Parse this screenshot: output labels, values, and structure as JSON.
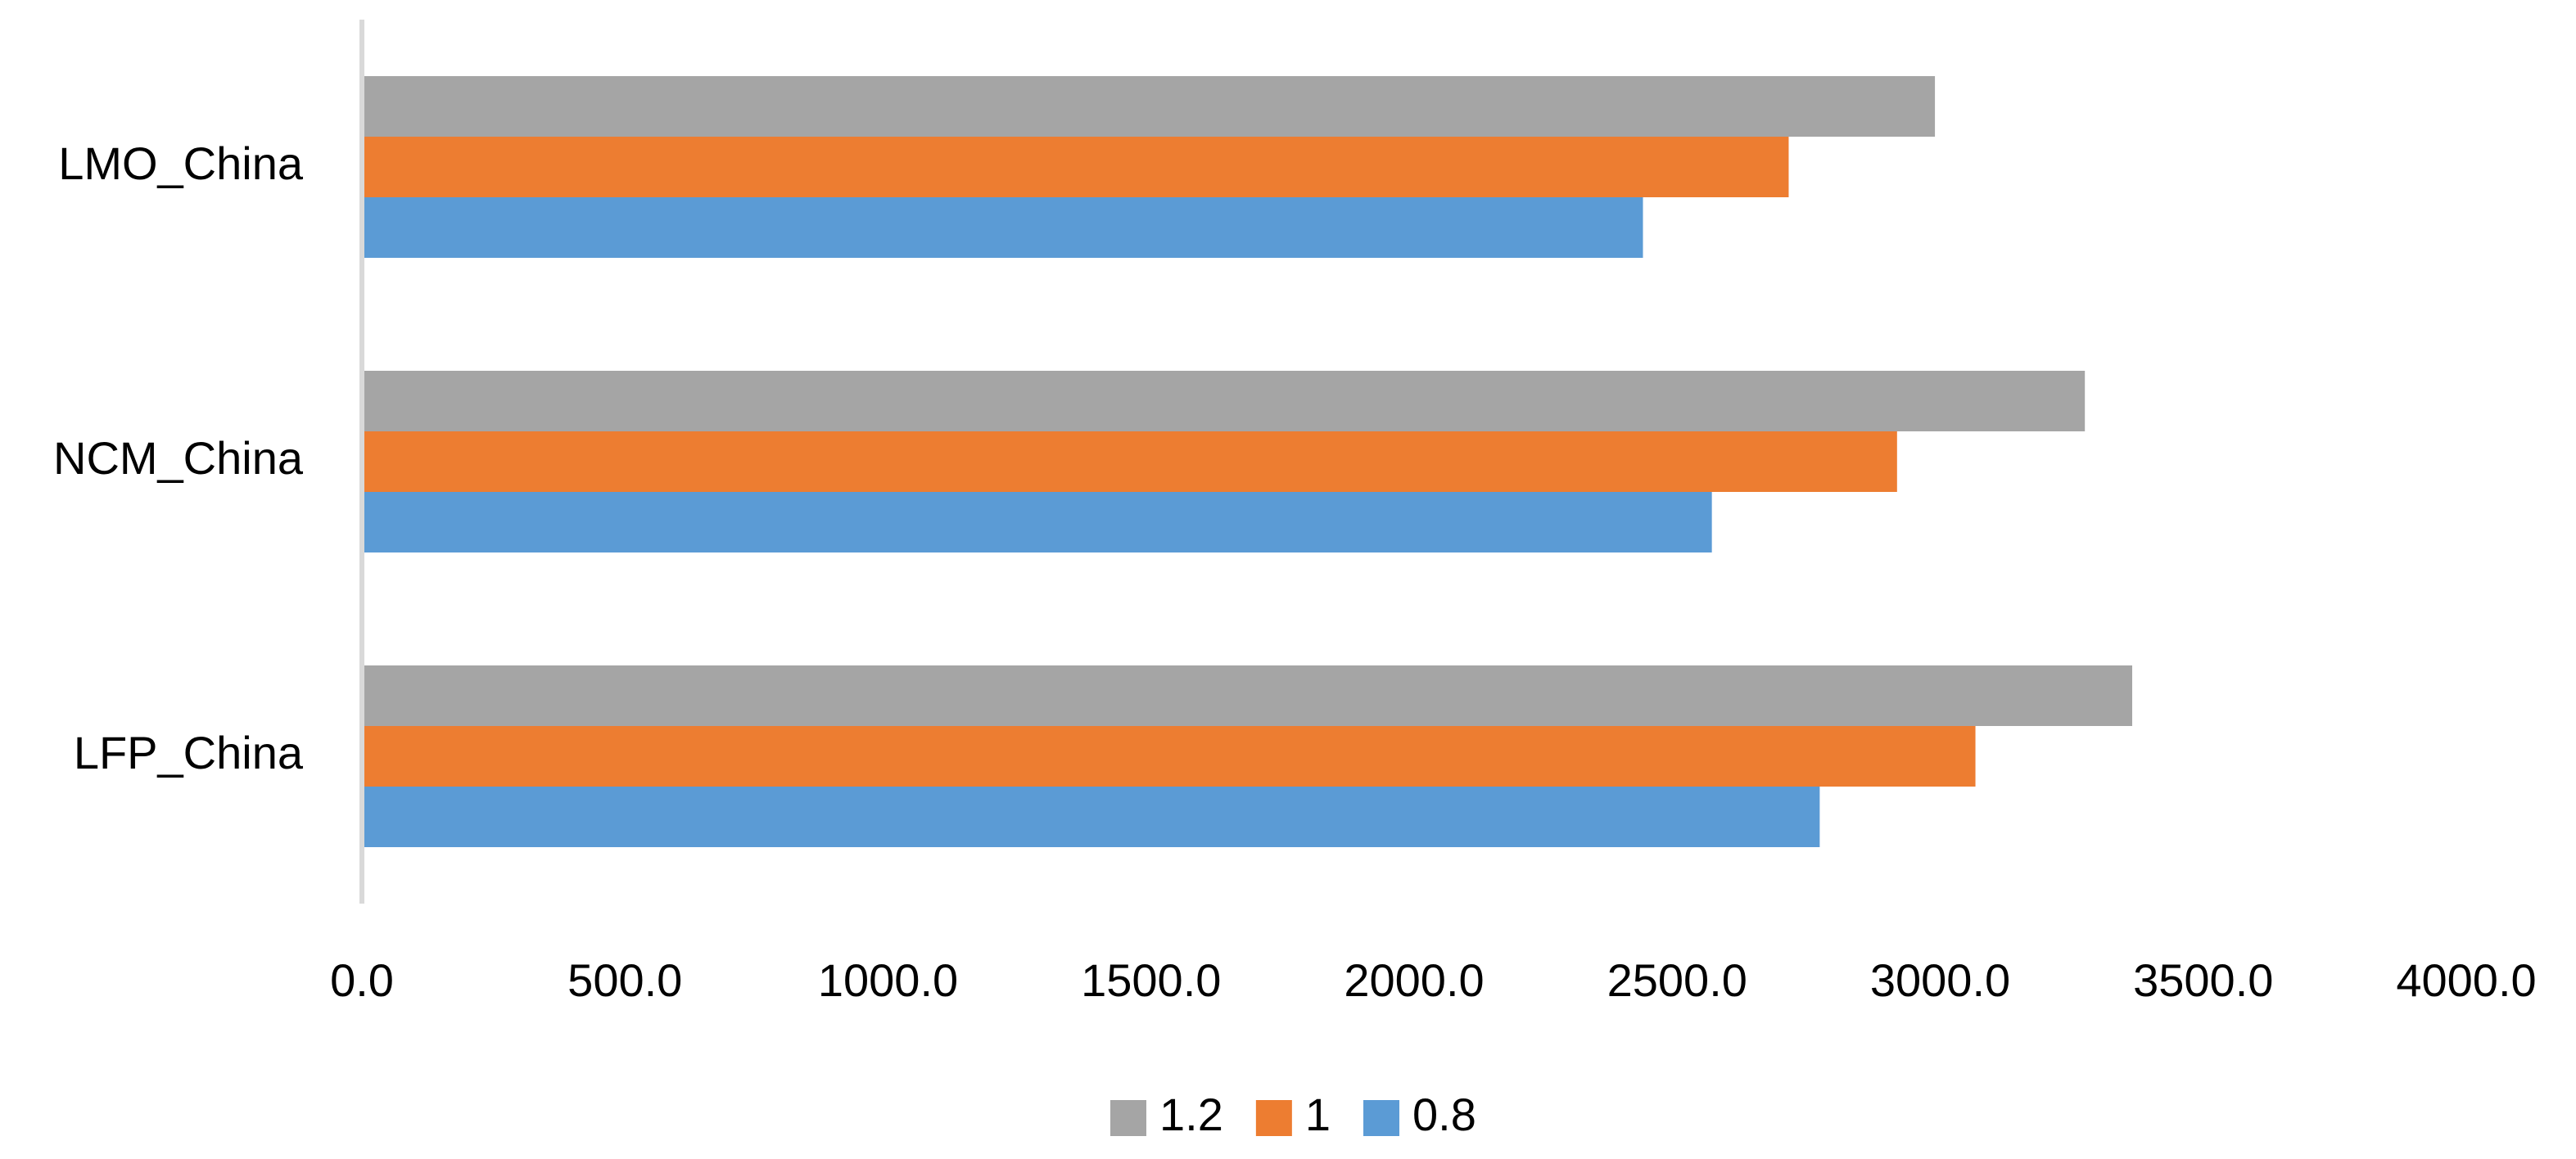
{
  "chart_data": {
    "type": "hbar",
    "categories": [
      "LFP_China",
      "NCM_China",
      "LMO_China"
    ],
    "series": [
      {
        "name": "0.8",
        "color": "#5b9bd5",
        "values": [
          2771,
          2566,
          2435
        ]
      },
      {
        "name": "1",
        "color": "#ed7d31",
        "values": [
          3067,
          2918,
          2712
        ]
      },
      {
        "name": "1.2",
        "color": "#a5a5a5",
        "values": [
          3365,
          3275,
          2990
        ]
      }
    ],
    "xlim": [
      0,
      4000
    ],
    "xticks": [
      {
        "value": 0,
        "label": "0.0"
      },
      {
        "value": 500,
        "label": "500.0"
      },
      {
        "value": 1000,
        "label": "1000.0"
      },
      {
        "value": 1500,
        "label": "1500.0"
      },
      {
        "value": 2000,
        "label": "2000.0"
      },
      {
        "value": 2500,
        "label": "2500.0"
      },
      {
        "value": 3000,
        "label": "3000.0"
      },
      {
        "value": 3500,
        "label": "3500.0"
      },
      {
        "value": 4000,
        "label": "4000.0"
      }
    ],
    "grid": false,
    "legend": "bottom"
  }
}
